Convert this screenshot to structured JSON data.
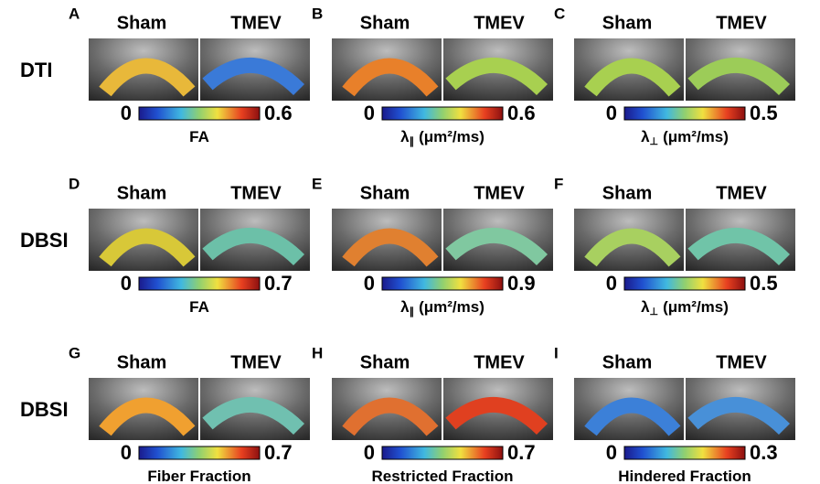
{
  "rows": [
    {
      "label": "DTI"
    },
    {
      "label": "DBSI"
    },
    {
      "label": "DBSI"
    }
  ],
  "panels": [
    {
      "letter": "A",
      "left": "Sham",
      "right": "TMEV",
      "min": 0,
      "max": 0.6,
      "metric": {
        "symbol": "FA"
      }
    },
    {
      "letter": "B",
      "left": "Sham",
      "right": "TMEV",
      "min": 0,
      "max": 0.6,
      "metric": {
        "symbol": "λ",
        "sub": "∥",
        "unit": "(μm²/ms)"
      }
    },
    {
      "letter": "C",
      "left": "Sham",
      "right": "TMEV",
      "min": 0,
      "max": 0.5,
      "metric": {
        "symbol": "λ",
        "sub": "⊥",
        "unit": "(μm²/ms)"
      }
    },
    {
      "letter": "D",
      "left": "Sham",
      "right": "TMEV",
      "min": 0,
      "max": 0.7,
      "metric": {
        "symbol": "FA"
      }
    },
    {
      "letter": "E",
      "left": "Sham",
      "right": "TMEV",
      "min": 0,
      "max": 0.9,
      "metric": {
        "symbol": "λ",
        "sub": "∥",
        "unit": "(μm²/ms)"
      }
    },
    {
      "letter": "F",
      "left": "Sham",
      "right": "TMEV",
      "min": 0,
      "max": 0.5,
      "metric": {
        "symbol": "λ",
        "sub": "⊥",
        "unit": "(μm²/ms)"
      }
    },
    {
      "letter": "G",
      "left": "Sham",
      "right": "TMEV",
      "min": 0,
      "max": 0.7,
      "metric": {
        "symbol": "Fiber Fraction"
      }
    },
    {
      "letter": "H",
      "left": "Sham",
      "right": "TMEV",
      "min": 0,
      "max": 0.7,
      "metric": {
        "symbol": "Restricted Fraction"
      }
    },
    {
      "letter": "I",
      "left": "Sham",
      "right": "TMEV",
      "min": 0,
      "max": 0.3,
      "metric": {
        "symbol": "Hindered Fraction"
      }
    }
  ]
}
